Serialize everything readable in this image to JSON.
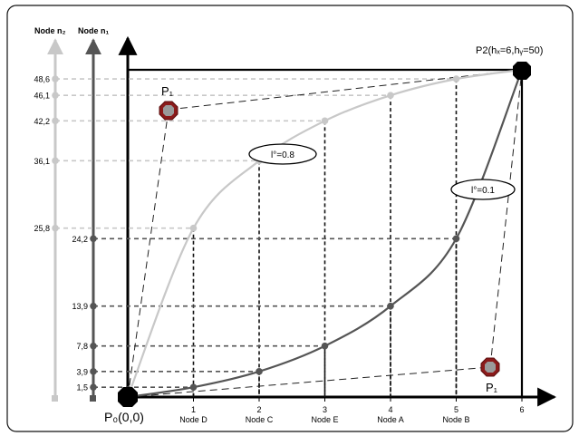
{
  "axis_n2_label": "Node n₂",
  "axis_n1_label": "Node n₁",
  "p0_label": "P₀(0,0)",
  "p2_label": "P2(hₓ=6,hᵧ=50)",
  "p1_top_label": "P₁",
  "p1_bottom_label": "P₁",
  "curve_light_label": "l°=0.8",
  "curve_dark_label": "l°=0.1",
  "colors": {
    "light": "#c8c8c8",
    "dark": "#555555",
    "p1": "#8b1a1a"
  },
  "chart_data": {
    "type": "line",
    "x_ticks": [
      {
        "value": "1",
        "name": "Node D"
      },
      {
        "value": "2",
        "name": "Node C"
      },
      {
        "value": "3",
        "name": "Node E"
      },
      {
        "value": "4",
        "name": "Node A"
      },
      {
        "value": "5",
        "name": "Node B"
      },
      {
        "value": "6",
        "name": ""
      }
    ],
    "n2_ticks": [
      "48,6",
      "46,1",
      "42,2",
      "36,1",
      "25,8"
    ],
    "n1_ticks": [
      "24,2",
      "13,9",
      "7,8",
      "3,9",
      "1,5"
    ],
    "xlim": [
      0,
      6
    ],
    "ylim": [
      0,
      50
    ],
    "series": [
      {
        "label": "l°=0.8",
        "x": [
          0,
          1,
          2,
          3,
          4,
          5,
          6
        ],
        "y": [
          0,
          25.8,
          36.1,
          42.2,
          46.1,
          48.6,
          50
        ]
      },
      {
        "label": "l°=0.1",
        "x": [
          0,
          1,
          2,
          3,
          4,
          5,
          6
        ],
        "y": [
          0,
          1.5,
          3.9,
          7.8,
          13.9,
          24.2,
          50
        ]
      }
    ]
  }
}
